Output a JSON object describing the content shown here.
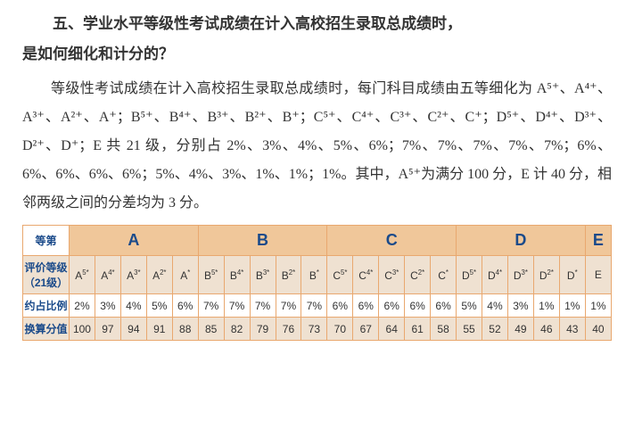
{
  "heading_l1": "五、学业水平等级性考试成绩在计入高校招生录取总成绩时，",
  "heading_l2": "是如何细化和计分的？",
  "paragraph": "等级性考试成绩在计入高校招生录取总成绩时，每门科目成绩由五等细化为 A⁵⁺、A⁴⁺、A³⁺、A²⁺、A⁺；B⁵⁺、B⁴⁺、B³⁺、B²⁺、B⁺；C⁵⁺、C⁴⁺、C³⁺、C²⁺、C⁺；D⁵⁺、D⁴⁺、D³⁺、D²⁺、D⁺；E 共 21 级，分别占 2%、3%、4%、5%、6%；7%、7%、7%、7%、7%；6%、6%、6%、6%、6%；5%、4%、3%、1%、1%；1%。其中，A⁵⁺为满分 100 分，E 计 40 分，相邻两级之间的分差均为 3 分。",
  "table": {
    "hdr_col": "等第",
    "groups": [
      "A",
      "B",
      "C",
      "D",
      "E"
    ],
    "row1_label": "评价等级（21级）",
    "row1": [
      "A5*",
      "A4*",
      "A3*",
      "A2*",
      "A*",
      "B5*",
      "B4*",
      "B3*",
      "B2*",
      "B*",
      "C5*",
      "C4*",
      "C3*",
      "C2*",
      "C*",
      "D5*",
      "D4*",
      "D3*",
      "D2*",
      "D*",
      "E"
    ],
    "row2_label": "约占比例",
    "row2": [
      "2%",
      "3%",
      "4%",
      "5%",
      "6%",
      "7%",
      "7%",
      "7%",
      "7%",
      "7%",
      "6%",
      "6%",
      "6%",
      "6%",
      "6%",
      "5%",
      "4%",
      "3%",
      "1%",
      "1%",
      "1%"
    ],
    "row3_label": "换算分值",
    "row3": [
      "100",
      "97",
      "94",
      "91",
      "88",
      "85",
      "82",
      "79",
      "76",
      "73",
      "70",
      "67",
      "64",
      "61",
      "58",
      "55",
      "52",
      "49",
      "46",
      "43",
      "40"
    ]
  },
  "style": {
    "table_border": "#e9a86f",
    "header_bg": "#f0c79a",
    "odd_bg": "#efe1d1",
    "label_color": "#1a4a8a"
  }
}
